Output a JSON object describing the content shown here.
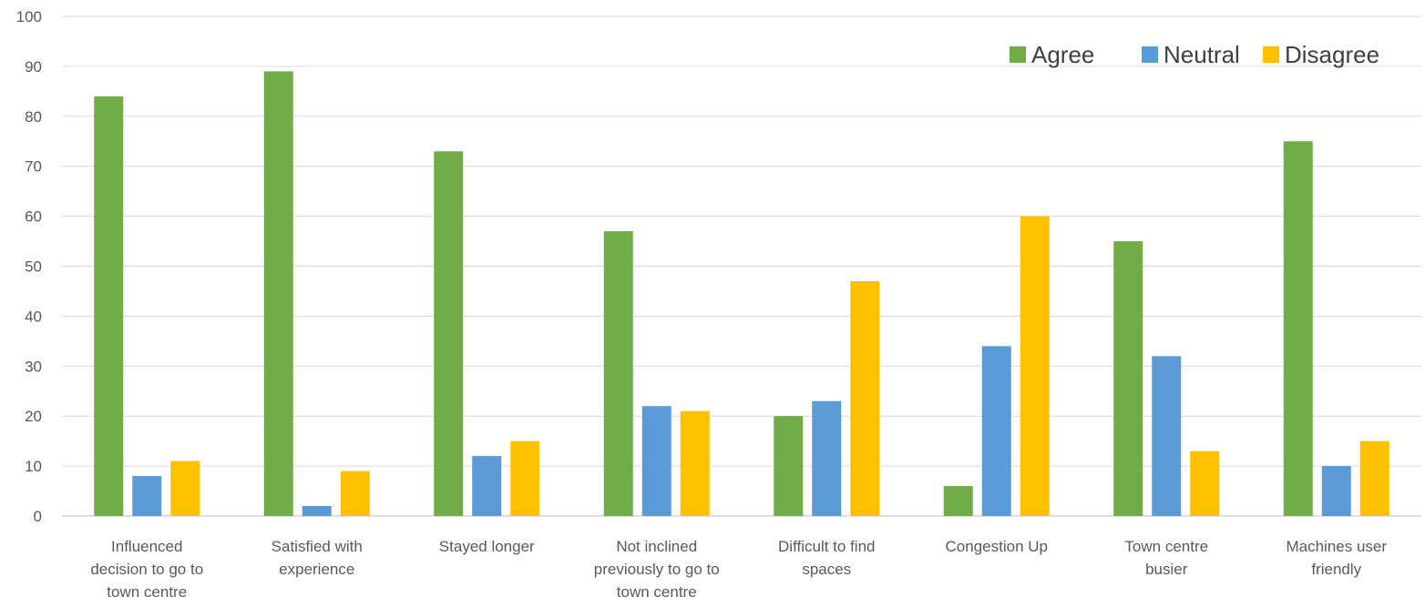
{
  "chart_data": {
    "type": "bar",
    "title": "",
    "xlabel": "",
    "ylabel": "",
    "ylim": [
      0,
      100
    ],
    "yticks": [
      0,
      10,
      20,
      30,
      40,
      50,
      60,
      70,
      80,
      90,
      100
    ],
    "grid": true,
    "legend_position": "top-right",
    "categories": [
      "Influenced decision to go to town centre",
      "Satisfied with experience",
      "Stayed longer",
      "Not inclined previously to go to town centre",
      "Difficult to find spaces",
      "Congestion Up",
      "Town centre busier",
      "Machines user friendly"
    ],
    "category_lines": [
      [
        "Influenced",
        "decision to go to",
        "town centre"
      ],
      [
        "Satisfied with",
        "experience"
      ],
      [
        "Stayed longer"
      ],
      [
        "Not inclined",
        "previously to go to",
        "town centre"
      ],
      [
        "Difficult to find",
        "spaces"
      ],
      [
        "Congestion Up"
      ],
      [
        "Town centre",
        "busier"
      ],
      [
        "Machines user",
        "friendly"
      ]
    ],
    "series": [
      {
        "name": "Agree",
        "color": "#70ad47",
        "values": [
          84,
          89,
          73,
          57,
          20,
          6,
          55,
          75
        ]
      },
      {
        "name": "Neutral",
        "color": "#5b9bd5",
        "values": [
          8,
          2,
          12,
          22,
          23,
          34,
          32,
          10
        ]
      },
      {
        "name": "Disagree",
        "color": "#ffc000",
        "values": [
          11,
          9,
          15,
          21,
          47,
          60,
          13,
          15
        ]
      }
    ]
  }
}
